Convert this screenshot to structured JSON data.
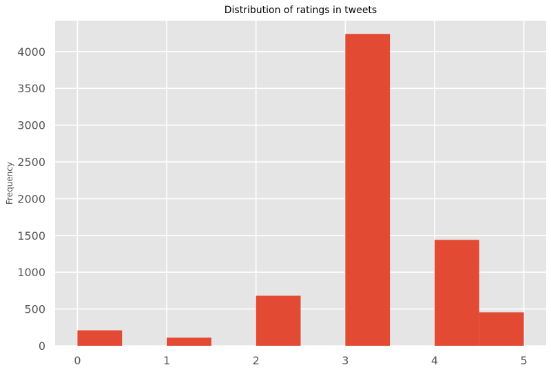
{
  "chart_data": {
    "type": "bar",
    "title": "Distribution of ratings in tweets",
    "xlabel": "",
    "ylabel": "Frequency",
    "bins": [
      {
        "x0": 0.0,
        "x1": 0.5,
        "value": 210
      },
      {
        "x0": 0.5,
        "x1": 1.0,
        "value": 0
      },
      {
        "x0": 1.0,
        "x1": 1.5,
        "value": 110
      },
      {
        "x0": 1.5,
        "x1": 2.0,
        "value": 0
      },
      {
        "x0": 2.0,
        "x1": 2.5,
        "value": 680
      },
      {
        "x0": 2.5,
        "x1": 3.0,
        "value": 0
      },
      {
        "x0": 3.0,
        "x1": 3.5,
        "value": 4240
      },
      {
        "x0": 3.5,
        "x1": 4.0,
        "value": 0
      },
      {
        "x0": 4.0,
        "x1": 4.5,
        "value": 1440
      },
      {
        "x0": 4.5,
        "x1": 5.0,
        "value": 455
      }
    ],
    "xlim": [
      -0.25,
      5.25
    ],
    "ylim": [
      0,
      4420
    ],
    "xticks": [
      0,
      1,
      2,
      3,
      4,
      5
    ],
    "yticks": [
      0,
      500,
      1000,
      1500,
      2000,
      2500,
      3000,
      3500,
      4000
    ],
    "grid": true,
    "colors": {
      "bar": "#E24A33",
      "plot_background": "#E5E5E5",
      "grid": "#FFFFFF"
    }
  }
}
